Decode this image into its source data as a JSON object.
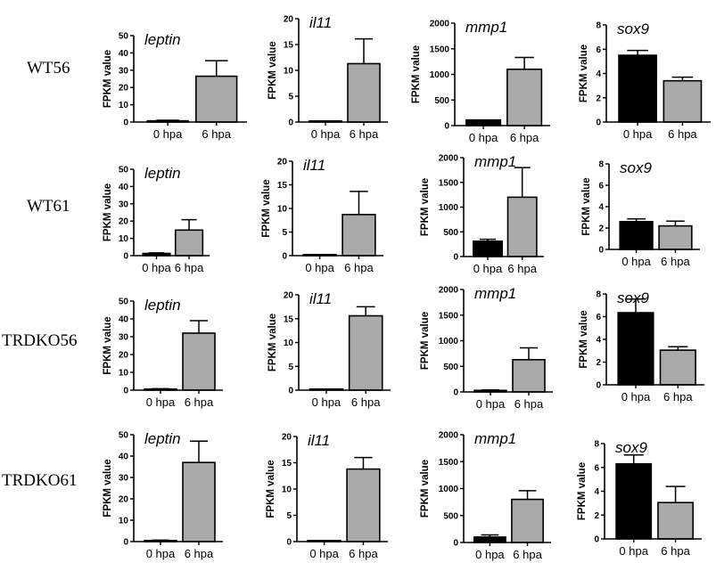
{
  "chart_data": {
    "type": "bar",
    "layout": "grid 4 rows x 4 columns",
    "row_labels": [
      "WT56",
      "WT61",
      "TRDKO56",
      "TRDKO61"
    ],
    "categories": [
      "0 hpa",
      "6 hpa"
    ],
    "ylabel": "FPKM value",
    "colors": {
      "0 hpa": "#000000",
      "6 hpa": "#aaaaaa"
    },
    "error_bars": "upper, mean + error",
    "panels": [
      {
        "row": "WT56",
        "gene": "leptin",
        "ylim": [
          0,
          50
        ],
        "ticks": [
          0,
          10,
          20,
          30,
          40,
          50
        ],
        "values": [
          0.7,
          26.5
        ],
        "errors": [
          0.3,
          9
        ]
      },
      {
        "row": "WT56",
        "gene": "il11",
        "ylim": [
          0,
          20
        ],
        "ticks": [
          0,
          5,
          10,
          15,
          20
        ],
        "values": [
          0.05,
          11.3
        ],
        "errors": [
          0,
          4.8
        ]
      },
      {
        "row": "WT56",
        "gene": "mmp1",
        "ylim": [
          0,
          2000
        ],
        "ticks": [
          0,
          500,
          1000,
          1500,
          2000
        ],
        "values": [
          110,
          1100
        ],
        "errors": [
          0,
          230
        ]
      },
      {
        "row": "WT56",
        "gene": "sox9",
        "ylim": [
          0,
          8
        ],
        "ticks": [
          0,
          2,
          4,
          6,
          8
        ],
        "values": [
          5.5,
          3.4
        ],
        "errors": [
          0.4,
          0.3
        ]
      },
      {
        "row": "WT61",
        "gene": "leptin",
        "ylim": [
          0,
          50
        ],
        "ticks": [
          0,
          10,
          20,
          30,
          40,
          50
        ],
        "values": [
          1.3,
          14.8
        ],
        "errors": [
          0.3,
          6
        ]
      },
      {
        "row": "WT61",
        "gene": "il11",
        "ylim": [
          0,
          20
        ],
        "ticks": [
          0,
          5,
          10,
          15,
          20
        ],
        "values": [
          0.1,
          8.7
        ],
        "errors": [
          0,
          4.9
        ]
      },
      {
        "row": "WT61",
        "gene": "mmp1",
        "ylim": [
          0,
          2000
        ],
        "ticks": [
          0,
          500,
          1000,
          1500,
          2000
        ],
        "values": [
          310,
          1200
        ],
        "errors": [
          40,
          600
        ]
      },
      {
        "row": "WT61",
        "gene": "sox9",
        "ylim": [
          0,
          8
        ],
        "ticks": [
          0,
          2,
          4,
          6,
          8
        ],
        "values": [
          2.6,
          2.2
        ],
        "errors": [
          0.25,
          0.45
        ]
      },
      {
        "row": "TRDKO56",
        "gene": "leptin",
        "ylim": [
          0,
          50
        ],
        "ticks": [
          0,
          10,
          20,
          30,
          40,
          50
        ],
        "values": [
          0.5,
          32
        ],
        "errors": [
          0.3,
          7
        ]
      },
      {
        "row": "TRDKO56",
        "gene": "il11",
        "ylim": [
          0,
          20
        ],
        "ticks": [
          0,
          5,
          10,
          15,
          20
        ],
        "values": [
          0.1,
          15.6
        ],
        "errors": [
          0,
          1.9
        ]
      },
      {
        "row": "TRDKO56",
        "gene": "mmp1",
        "ylim": [
          0,
          2000
        ],
        "ticks": [
          0,
          500,
          1000,
          1500,
          2000
        ],
        "values": [
          30,
          630
        ],
        "errors": [
          10,
          230
        ]
      },
      {
        "row": "TRDKO56",
        "gene": "sox9",
        "ylim": [
          0,
          8
        ],
        "ticks": [
          0,
          2,
          4,
          6,
          8
        ],
        "values": [
          6.35,
          3.05
        ],
        "errors": [
          1.2,
          0.3
        ]
      },
      {
        "row": "TRDKO61",
        "gene": "leptin",
        "ylim": [
          0,
          50
        ],
        "ticks": [
          0,
          10,
          20,
          30,
          40,
          50
        ],
        "values": [
          0.5,
          37
        ],
        "errors": [
          0.2,
          10
        ]
      },
      {
        "row": "TRDKO61",
        "gene": "il11",
        "ylim": [
          0,
          20
        ],
        "ticks": [
          0,
          5,
          10,
          15,
          20
        ],
        "values": [
          0,
          13.8
        ],
        "errors": [
          0,
          2.2
        ]
      },
      {
        "row": "TRDKO61",
        "gene": "mmp1",
        "ylim": [
          0,
          2000
        ],
        "ticks": [
          0,
          500,
          1000,
          1500,
          2000
        ],
        "values": [
          100,
          800
        ],
        "errors": [
          40,
          160
        ]
      },
      {
        "row": "TRDKO61",
        "gene": "sox9",
        "ylim": [
          0,
          8
        ],
        "ticks": [
          0,
          2,
          4,
          6,
          8
        ],
        "values": [
          6.3,
          3.05
        ],
        "errors": [
          0.75,
          1.35
        ]
      }
    ]
  }
}
